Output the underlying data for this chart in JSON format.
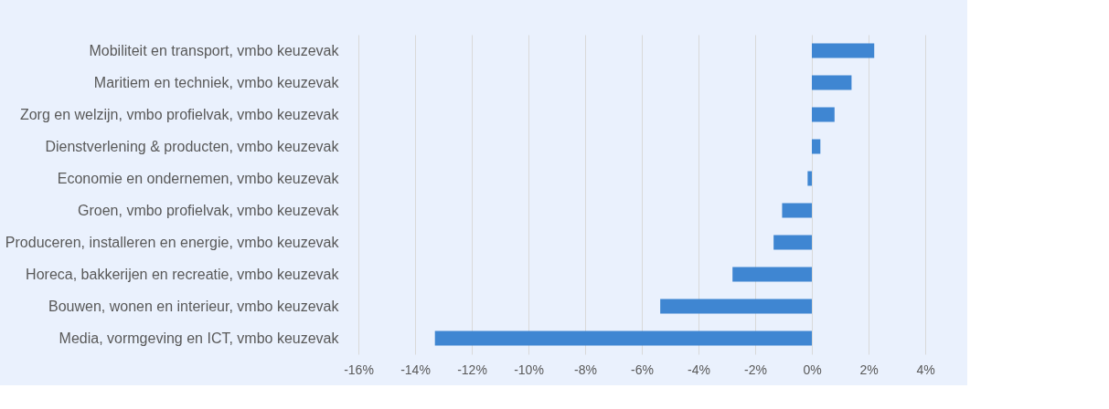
{
  "chart_data": {
    "type": "bar",
    "orientation": "horizontal",
    "categories": [
      "Mobiliteit en transport, vmbo keuzevak",
      "Maritiem en techniek, vmbo keuzevak",
      "Zorg en welzijn, vmbo profielvak, vmbo keuzevak",
      "Dienstverlening & producten, vmbo keuzevak",
      "Economie en ondernemen, vmbo keuzevak",
      "Groen, vmbo profielvak, vmbo keuzevak",
      "Produceren, installeren en energie, vmbo keuzevak",
      "Horeca, bakkerijen en recreatie, vmbo keuzevak",
      "Bouwen, wonen en interieur, vmbo keuzevak",
      "Media, vormgeving en ICT, vmbo keuzevak"
    ],
    "values": [
      2.2,
      1.4,
      0.8,
      0.3,
      -0.15,
      -1.05,
      -1.35,
      -2.8,
      -5.35,
      -13.3
    ],
    "color": "#3f86d2",
    "xlim": [
      -16,
      4
    ],
    "xticks": [
      {
        "value": -16,
        "label": "-16%"
      },
      {
        "value": -14,
        "label": "-14%"
      },
      {
        "value": -12,
        "label": "-12%"
      },
      {
        "value": -10,
        "label": "-10%"
      },
      {
        "value": -8,
        "label": "-8%"
      },
      {
        "value": -6,
        "label": "-6%"
      },
      {
        "value": -4,
        "label": "-4%"
      },
      {
        "value": -2,
        "label": "-2%"
      },
      {
        "value": 0,
        "label": "0%"
      },
      {
        "value": 2,
        "label": "2%"
      },
      {
        "value": 4,
        "label": "4%"
      }
    ],
    "grid": "x"
  }
}
